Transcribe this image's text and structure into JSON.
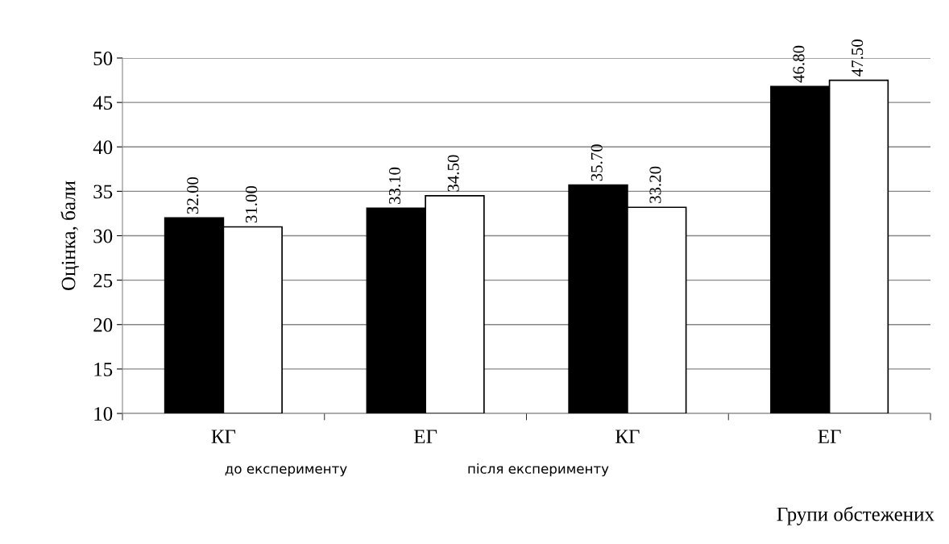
{
  "chart_data": {
    "type": "bar",
    "ylabel": "Оцінка, бали",
    "xlabel": "Групи обстежених",
    "categories": [
      "КГ",
      "ЕГ",
      "КГ",
      "ЕГ"
    ],
    "series": [
      {
        "color": "#000000",
        "values": [
          32.0,
          33.1,
          35.7,
          46.8
        ],
        "value_labels": [
          "32.00",
          "33.10",
          "35.70",
          "46.80"
        ]
      },
      {
        "color": "#ffffff",
        "values": [
          31.0,
          34.5,
          33.2,
          47.5
        ],
        "value_labels": [
          "31.00",
          "34.50",
          "33.20",
          "47.50"
        ]
      }
    ],
    "annotations": [
      "до експерименту",
      "після експерименту"
    ],
    "ylim": [
      10,
      50
    ],
    "yticks": [
      10,
      15,
      20,
      25,
      30,
      35,
      40,
      45,
      50
    ],
    "grid": "y",
    "legend": false
  }
}
